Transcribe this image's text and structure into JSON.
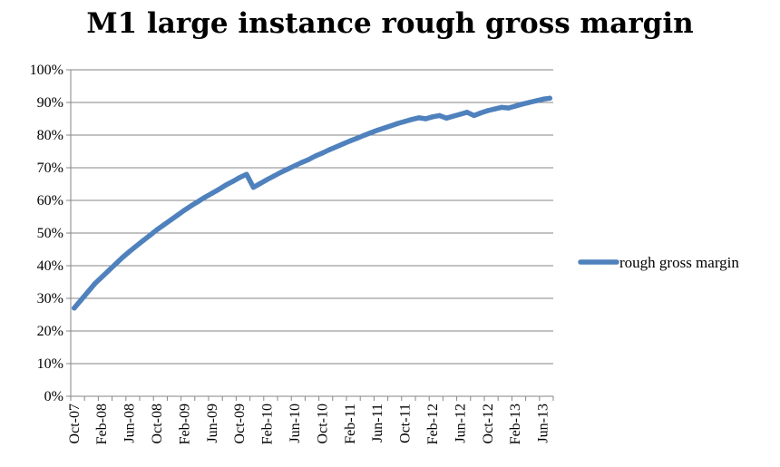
{
  "chart_data": {
    "type": "line",
    "title": "M1 large instance rough gross margin",
    "xlabel": "",
    "ylabel": "",
    "ylim": [
      0,
      100
    ],
    "y_ticks": [
      "0%",
      "10%",
      "20%",
      "30%",
      "40%",
      "50%",
      "60%",
      "70%",
      "80%",
      "90%",
      "100%"
    ],
    "x_tick_labels": [
      "Oct-07",
      "Feb-08",
      "Jun-08",
      "Oct-08",
      "Feb-09",
      "Jun-09",
      "Oct-09",
      "Feb-10",
      "Jun-10",
      "Oct-10",
      "Feb-11",
      "Jun-11",
      "Oct-11",
      "Feb-12",
      "Jun-12",
      "Oct-12",
      "Feb-13",
      "Jun-13"
    ],
    "grid": "horizontal",
    "legend_position": "right",
    "series": [
      {
        "name": "rough gross margin",
        "color": "#4f81bd",
        "x": [
          "Oct-07",
          "Nov-07",
          "Dec-07",
          "Jan-08",
          "Feb-08",
          "Mar-08",
          "Apr-08",
          "May-08",
          "Jun-08",
          "Jul-08",
          "Aug-08",
          "Sep-08",
          "Oct-08",
          "Nov-08",
          "Dec-08",
          "Jan-09",
          "Feb-09",
          "Mar-09",
          "Apr-09",
          "May-09",
          "Jun-09",
          "Jul-09",
          "Aug-09",
          "Sep-09",
          "Oct-09",
          "Nov-09",
          "Dec-09",
          "Jan-10",
          "Feb-10",
          "Mar-10",
          "Apr-10",
          "May-10",
          "Jun-10",
          "Jul-10",
          "Aug-10",
          "Sep-10",
          "Oct-10",
          "Nov-10",
          "Dec-10",
          "Jan-11",
          "Feb-11",
          "Mar-11",
          "Apr-11",
          "May-11",
          "Jun-11",
          "Jul-11",
          "Aug-11",
          "Sep-11",
          "Oct-11",
          "Nov-11",
          "Dec-11",
          "Jan-12",
          "Feb-12",
          "Mar-12",
          "Apr-12",
          "May-12",
          "Jun-12",
          "Jul-12",
          "Aug-12",
          "Sep-12",
          "Oct-12",
          "Nov-12",
          "Dec-12",
          "Jan-13",
          "Feb-13",
          "Mar-13",
          "Apr-13",
          "May-13",
          "Jun-13",
          "Jul-13"
        ],
        "values": [
          27,
          29.5,
          32,
          34.5,
          36.5,
          38.5,
          40.5,
          42.5,
          44.3,
          46,
          47.7,
          49.3,
          51,
          52.5,
          54,
          55.5,
          57,
          58.4,
          59.7,
          61,
          62.2,
          63.4,
          64.7,
          65.8,
          67,
          68,
          64,
          65.2,
          66.4,
          67.5,
          68.6,
          69.6,
          70.6,
          71.6,
          72.5,
          73.6,
          74.5,
          75.5,
          76.4,
          77.3,
          78.2,
          79,
          79.9,
          80.7,
          81.5,
          82.2,
          82.9,
          83.6,
          84.2,
          84.8,
          85.3,
          85,
          85.6,
          86,
          85.2,
          85.8,
          86.4,
          87,
          86,
          86.8,
          87.5,
          88,
          88.5,
          88.3,
          88.9,
          89.5,
          90,
          90.5,
          91,
          91.3
        ]
      }
    ]
  }
}
